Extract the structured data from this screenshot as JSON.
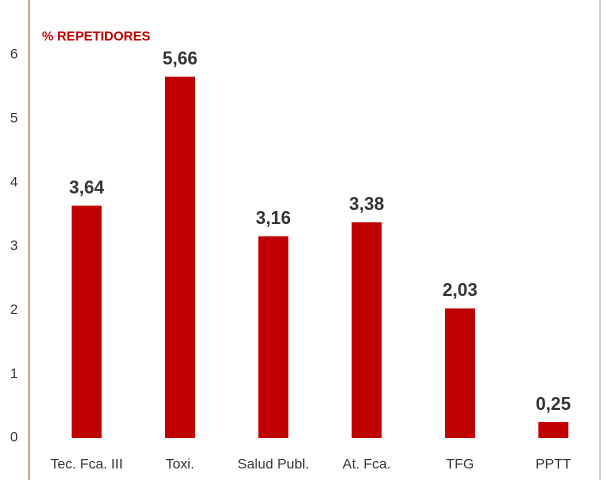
{
  "chart_data": {
    "type": "bar",
    "title": "% REPETIDORES",
    "categories": [
      "Tec. Fca. III",
      "Toxi.",
      "Salud Publ.",
      "At. Fca.",
      "TFG",
      "PPTT"
    ],
    "values": [
      3.64,
      5.66,
      3.16,
      3.38,
      2.03,
      0.25
    ],
    "value_labels": [
      "3,64",
      "5,66",
      "3,16",
      "3,38",
      "2,03",
      "0,25"
    ],
    "color": "#c00000",
    "ylim": [
      0,
      6
    ],
    "yticks": [
      0,
      1,
      2,
      3,
      4,
      5,
      6
    ],
    "grid": false
  }
}
